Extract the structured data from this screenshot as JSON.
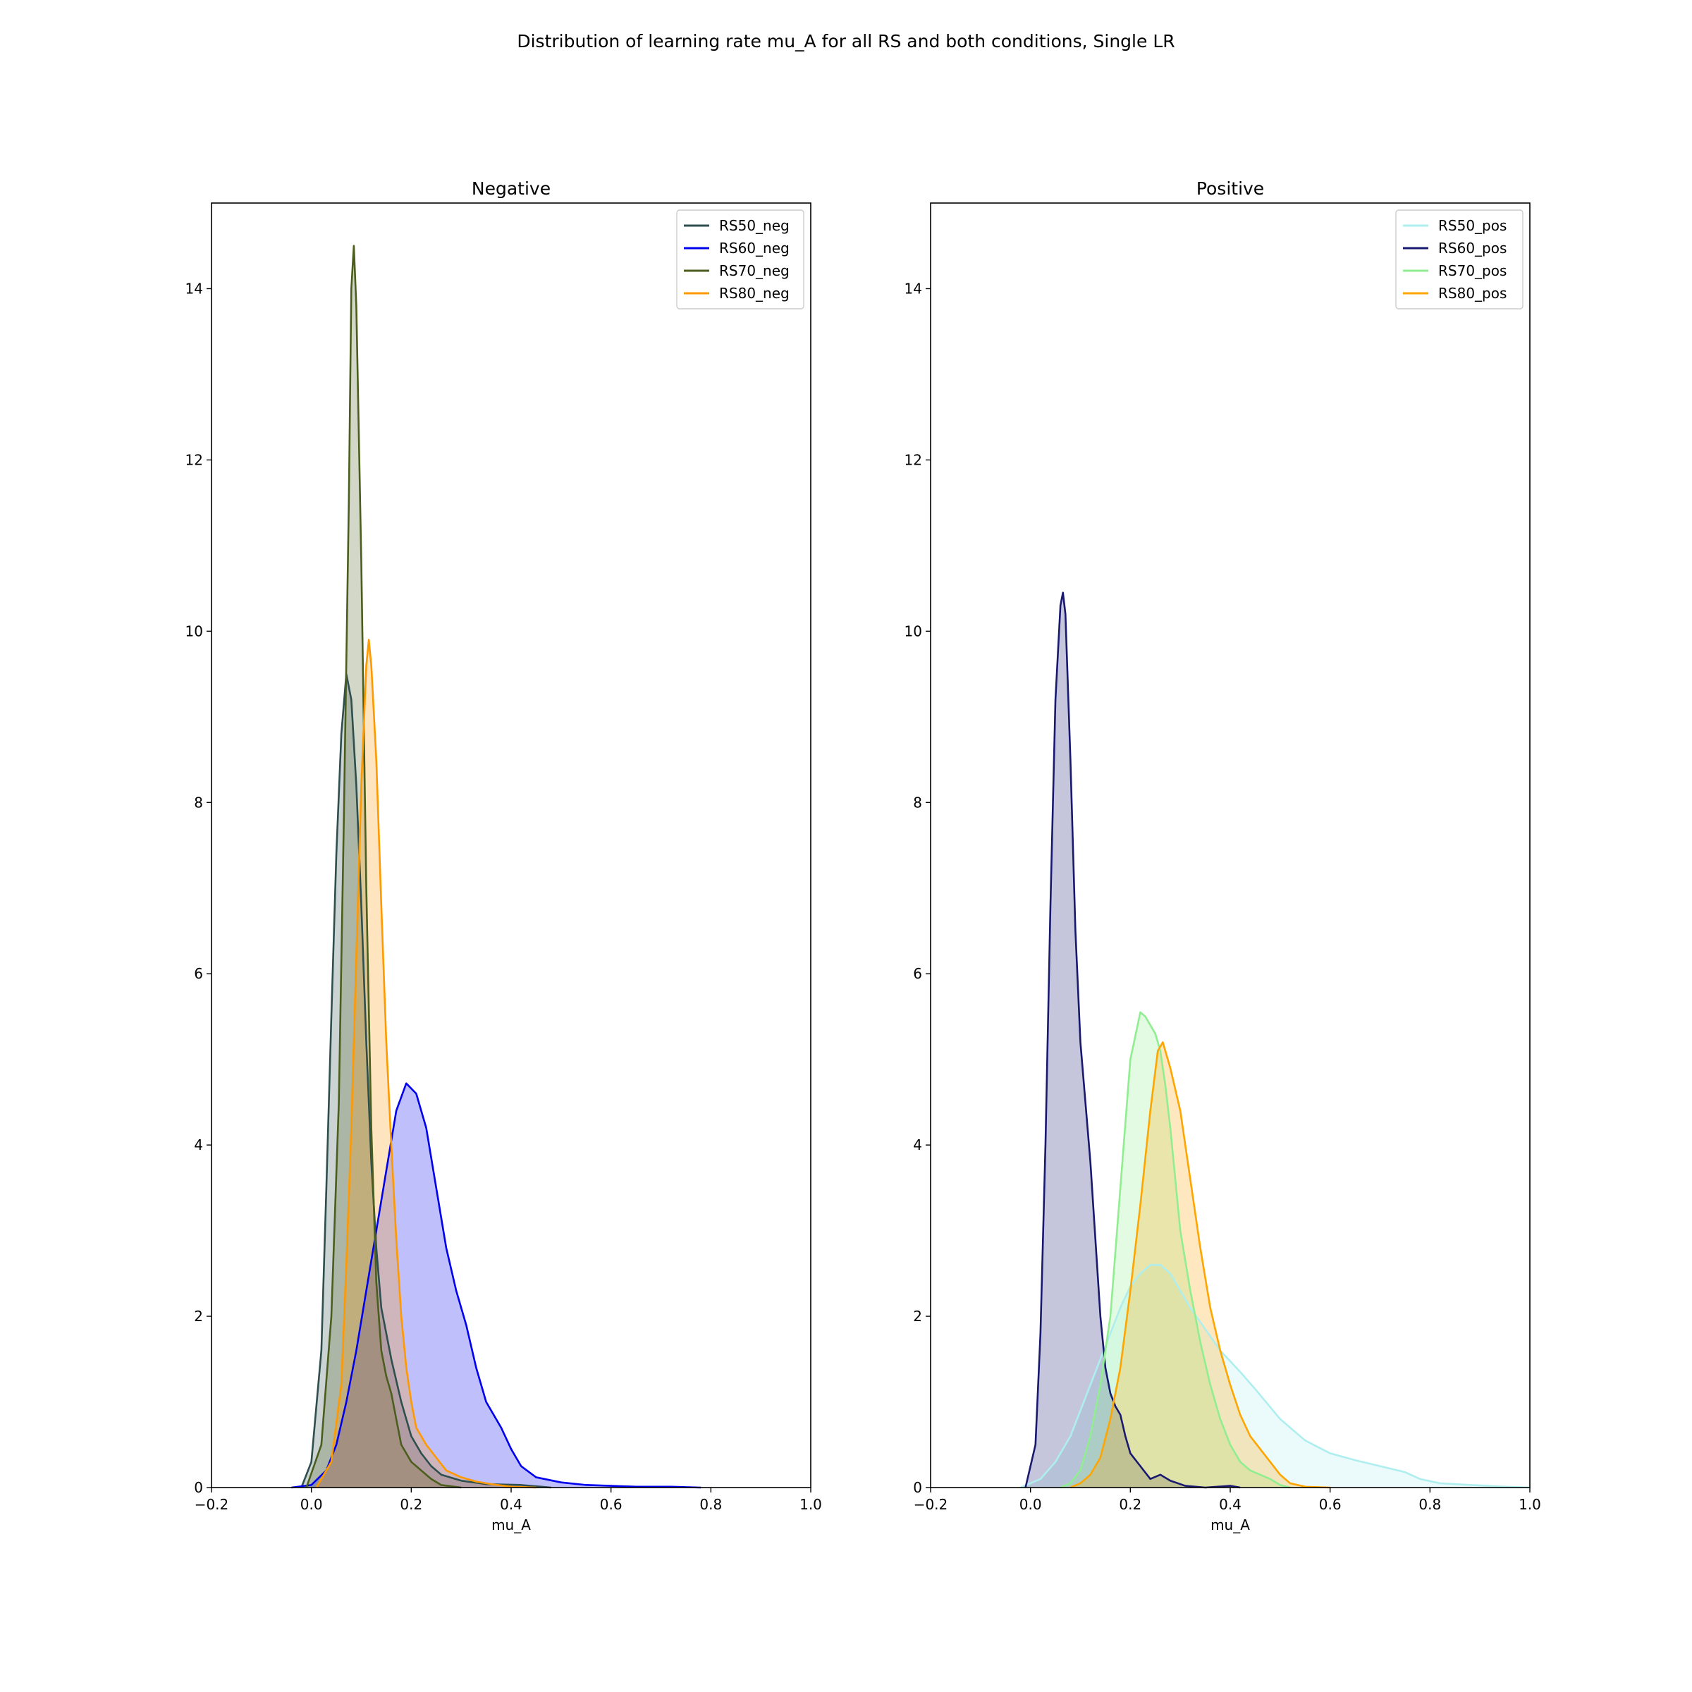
{
  "figure": {
    "suptitle": "Distribution of learning rate mu_A for all RS and both conditions, Single LR"
  },
  "chart_data": [
    {
      "type": "area",
      "title": "Negative",
      "xlabel": "mu_A",
      "ylabel": "",
      "xlim": [
        -0.2,
        1.0
      ],
      "ylim": [
        0,
        15
      ],
      "xticks": [
        -0.2,
        0.0,
        0.2,
        0.4,
        0.6,
        0.8,
        1.0
      ],
      "xtick_labels": [
        "−0.2",
        "0.0",
        "0.2",
        "0.4",
        "0.6",
        "0.8",
        "1.0"
      ],
      "yticks": [
        0,
        2,
        4,
        6,
        8,
        10,
        12,
        14
      ],
      "ytick_labels": [
        "0",
        "2",
        "4",
        "6",
        "8",
        "10",
        "12",
        "14"
      ],
      "grid": false,
      "legend_position": "top-right",
      "series": [
        {
          "name": "RS50_neg",
          "color": "#2f4f4f",
          "points": [
            [
              -0.02,
              0
            ],
            [
              0.0,
              0.3
            ],
            [
              0.02,
              1.6
            ],
            [
              0.03,
              3.5
            ],
            [
              0.04,
              5.5
            ],
            [
              0.05,
              7.4
            ],
            [
              0.06,
              8.8
            ],
            [
              0.07,
              9.5
            ],
            [
              0.08,
              9.2
            ],
            [
              0.09,
              8.2
            ],
            [
              0.1,
              6.8
            ],
            [
              0.11,
              5.2
            ],
            [
              0.12,
              3.8
            ],
            [
              0.13,
              2.8
            ],
            [
              0.14,
              2.1
            ],
            [
              0.16,
              1.5
            ],
            [
              0.18,
              1.0
            ],
            [
              0.2,
              0.6
            ],
            [
              0.22,
              0.4
            ],
            [
              0.24,
              0.25
            ],
            [
              0.26,
              0.15
            ],
            [
              0.3,
              0.08
            ],
            [
              0.35,
              0.04
            ],
            [
              0.42,
              0.03
            ],
            [
              0.48,
              0.0
            ]
          ]
        },
        {
          "name": "RS60_neg",
          "color": "#0000ee",
          "points": [
            [
              -0.04,
              0
            ],
            [
              0.0,
              0.03
            ],
            [
              0.03,
              0.2
            ],
            [
              0.05,
              0.5
            ],
            [
              0.07,
              1.0
            ],
            [
              0.09,
              1.6
            ],
            [
              0.11,
              2.3
            ],
            [
              0.13,
              3.0
            ],
            [
              0.15,
              3.7
            ],
            [
              0.17,
              4.4
            ],
            [
              0.19,
              4.72
            ],
            [
              0.21,
              4.6
            ],
            [
              0.23,
              4.2
            ],
            [
              0.25,
              3.5
            ],
            [
              0.27,
              2.8
            ],
            [
              0.29,
              2.3
            ],
            [
              0.31,
              1.9
            ],
            [
              0.33,
              1.4
            ],
            [
              0.35,
              1.0
            ],
            [
              0.38,
              0.7
            ],
            [
              0.4,
              0.45
            ],
            [
              0.42,
              0.25
            ],
            [
              0.45,
              0.12
            ],
            [
              0.5,
              0.06
            ],
            [
              0.55,
              0.03
            ],
            [
              0.6,
              0.02
            ],
            [
              0.65,
              0.01
            ],
            [
              0.72,
              0.01
            ],
            [
              0.78,
              0
            ]
          ]
        },
        {
          "name": "RS70_neg",
          "color": "#4b5e1e",
          "points": [
            [
              -0.01,
              0
            ],
            [
              0.02,
              0.5
            ],
            [
              0.04,
              2.0
            ],
            [
              0.055,
              4.5
            ],
            [
              0.065,
              7.8
            ],
            [
              0.075,
              11.5
            ],
            [
              0.08,
              14.0
            ],
            [
              0.085,
              14.5
            ],
            [
              0.09,
              13.8
            ],
            [
              0.1,
              10.8
            ],
            [
              0.11,
              7.0
            ],
            [
              0.12,
              4.2
            ],
            [
              0.13,
              2.4
            ],
            [
              0.14,
              1.6
            ],
            [
              0.15,
              1.3
            ],
            [
              0.16,
              1.1
            ],
            [
              0.17,
              0.8
            ],
            [
              0.18,
              0.5
            ],
            [
              0.2,
              0.3
            ],
            [
              0.22,
              0.2
            ],
            [
              0.24,
              0.1
            ],
            [
              0.26,
              0.03
            ],
            [
              0.3,
              0.0
            ]
          ]
        },
        {
          "name": "RS80_neg",
          "color": "#ff9900",
          "points": [
            [
              0.01,
              0
            ],
            [
              0.04,
              0.3
            ],
            [
              0.06,
              1.2
            ],
            [
              0.07,
              2.6
            ],
            [
              0.08,
              4.2
            ],
            [
              0.09,
              6.2
            ],
            [
              0.1,
              8.2
            ],
            [
              0.11,
              9.6
            ],
            [
              0.115,
              9.9
            ],
            [
              0.12,
              9.6
            ],
            [
              0.13,
              8.5
            ],
            [
              0.14,
              6.8
            ],
            [
              0.15,
              5.2
            ],
            [
              0.16,
              4.0
            ],
            [
              0.17,
              2.9
            ],
            [
              0.18,
              2.0
            ],
            [
              0.19,
              1.4
            ],
            [
              0.2,
              1.0
            ],
            [
              0.21,
              0.7
            ],
            [
              0.23,
              0.5
            ],
            [
              0.25,
              0.35
            ],
            [
              0.27,
              0.2
            ],
            [
              0.3,
              0.12
            ],
            [
              0.33,
              0.07
            ],
            [
              0.36,
              0.04
            ],
            [
              0.4,
              0.01
            ],
            [
              0.45,
              0.0
            ]
          ]
        }
      ]
    },
    {
      "type": "area",
      "title": "Positive",
      "xlabel": "mu_A",
      "ylabel": "",
      "xlim": [
        -0.2,
        1.0
      ],
      "ylim": [
        0,
        15
      ],
      "xticks": [
        -0.2,
        0.0,
        0.2,
        0.4,
        0.6,
        0.8,
        1.0
      ],
      "xtick_labels": [
        "−0.2",
        "0.0",
        "0.2",
        "0.4",
        "0.6",
        "0.8",
        "1.0"
      ],
      "yticks": [
        0,
        2,
        4,
        6,
        8,
        10,
        12,
        14
      ],
      "ytick_labels": [
        "0",
        "2",
        "4",
        "6",
        "8",
        "10",
        "12",
        "14"
      ],
      "grid": false,
      "legend_position": "top-right",
      "series": [
        {
          "name": "RS50_pos",
          "color": "#afeeee",
          "points": [
            [
              -0.02,
              0
            ],
            [
              0.02,
              0.1
            ],
            [
              0.05,
              0.3
            ],
            [
              0.08,
              0.6
            ],
            [
              0.1,
              0.9
            ],
            [
              0.12,
              1.2
            ],
            [
              0.14,
              1.5
            ],
            [
              0.16,
              1.8
            ],
            [
              0.18,
              2.1
            ],
            [
              0.2,
              2.35
            ],
            [
              0.22,
              2.5
            ],
            [
              0.24,
              2.6
            ],
            [
              0.26,
              2.6
            ],
            [
              0.28,
              2.5
            ],
            [
              0.3,
              2.3
            ],
            [
              0.32,
              2.1
            ],
            [
              0.35,
              1.85
            ],
            [
              0.38,
              1.6
            ],
            [
              0.42,
              1.35
            ],
            [
              0.45,
              1.15
            ],
            [
              0.5,
              0.8
            ],
            [
              0.55,
              0.55
            ],
            [
              0.6,
              0.4
            ],
            [
              0.65,
              0.32
            ],
            [
              0.7,
              0.25
            ],
            [
              0.75,
              0.18
            ],
            [
              0.78,
              0.1
            ],
            [
              0.82,
              0.05
            ],
            [
              0.88,
              0.03
            ],
            [
              0.95,
              0.01
            ],
            [
              1.0,
              0
            ]
          ]
        },
        {
          "name": "RS60_pos",
          "color": "#191970",
          "points": [
            [
              -0.01,
              0
            ],
            [
              0.01,
              0.5
            ],
            [
              0.02,
              1.8
            ],
            [
              0.03,
              4.0
            ],
            [
              0.04,
              6.8
            ],
            [
              0.05,
              9.2
            ],
            [
              0.06,
              10.3
            ],
            [
              0.065,
              10.45
            ],
            [
              0.07,
              10.2
            ],
            [
              0.08,
              8.5
            ],
            [
              0.09,
              6.5
            ],
            [
              0.1,
              5.2
            ],
            [
              0.11,
              4.5
            ],
            [
              0.12,
              3.8
            ],
            [
              0.13,
              2.9
            ],
            [
              0.14,
              2.0
            ],
            [
              0.15,
              1.4
            ],
            [
              0.16,
              1.1
            ],
            [
              0.17,
              0.95
            ],
            [
              0.18,
              0.85
            ],
            [
              0.19,
              0.6
            ],
            [
              0.2,
              0.4
            ],
            [
              0.22,
              0.25
            ],
            [
              0.24,
              0.1
            ],
            [
              0.26,
              0.15
            ],
            [
              0.28,
              0.08
            ],
            [
              0.31,
              0.02
            ],
            [
              0.35,
              0.0
            ],
            [
              0.4,
              0.02
            ],
            [
              0.42,
              0.0
            ]
          ]
        },
        {
          "name": "RS70_pos",
          "color": "#90ee90",
          "points": [
            [
              0.06,
              0
            ],
            [
              0.08,
              0.05
            ],
            [
              0.1,
              0.2
            ],
            [
              0.12,
              0.6
            ],
            [
              0.14,
              1.2
            ],
            [
              0.16,
              2.0
            ],
            [
              0.18,
              3.5
            ],
            [
              0.2,
              5.0
            ],
            [
              0.22,
              5.55
            ],
            [
              0.23,
              5.5
            ],
            [
              0.25,
              5.3
            ],
            [
              0.26,
              5.1
            ],
            [
              0.27,
              4.7
            ],
            [
              0.28,
              4.2
            ],
            [
              0.29,
              3.6
            ],
            [
              0.3,
              3.0
            ],
            [
              0.32,
              2.3
            ],
            [
              0.34,
              1.7
            ],
            [
              0.36,
              1.2
            ],
            [
              0.38,
              0.8
            ],
            [
              0.4,
              0.5
            ],
            [
              0.42,
              0.3
            ],
            [
              0.44,
              0.2
            ],
            [
              0.46,
              0.15
            ],
            [
              0.48,
              0.1
            ],
            [
              0.5,
              0.03
            ],
            [
              0.52,
              0.0
            ]
          ]
        },
        {
          "name": "RS80_pos",
          "color": "#ffa500",
          "points": [
            [
              0.08,
              0
            ],
            [
              0.1,
              0.05
            ],
            [
              0.12,
              0.15
            ],
            [
              0.14,
              0.35
            ],
            [
              0.16,
              0.8
            ],
            [
              0.18,
              1.4
            ],
            [
              0.2,
              2.3
            ],
            [
              0.22,
              3.3
            ],
            [
              0.24,
              4.4
            ],
            [
              0.255,
              5.1
            ],
            [
              0.265,
              5.2
            ],
            [
              0.28,
              4.9
            ],
            [
              0.3,
              4.4
            ],
            [
              0.32,
              3.6
            ],
            [
              0.34,
              2.8
            ],
            [
              0.36,
              2.1
            ],
            [
              0.38,
              1.6
            ],
            [
              0.4,
              1.2
            ],
            [
              0.42,
              0.85
            ],
            [
              0.44,
              0.6
            ],
            [
              0.46,
              0.45
            ],
            [
              0.48,
              0.3
            ],
            [
              0.5,
              0.15
            ],
            [
              0.52,
              0.05
            ],
            [
              0.55,
              0.01
            ],
            [
              0.6,
              0.0
            ]
          ]
        }
      ]
    }
  ]
}
